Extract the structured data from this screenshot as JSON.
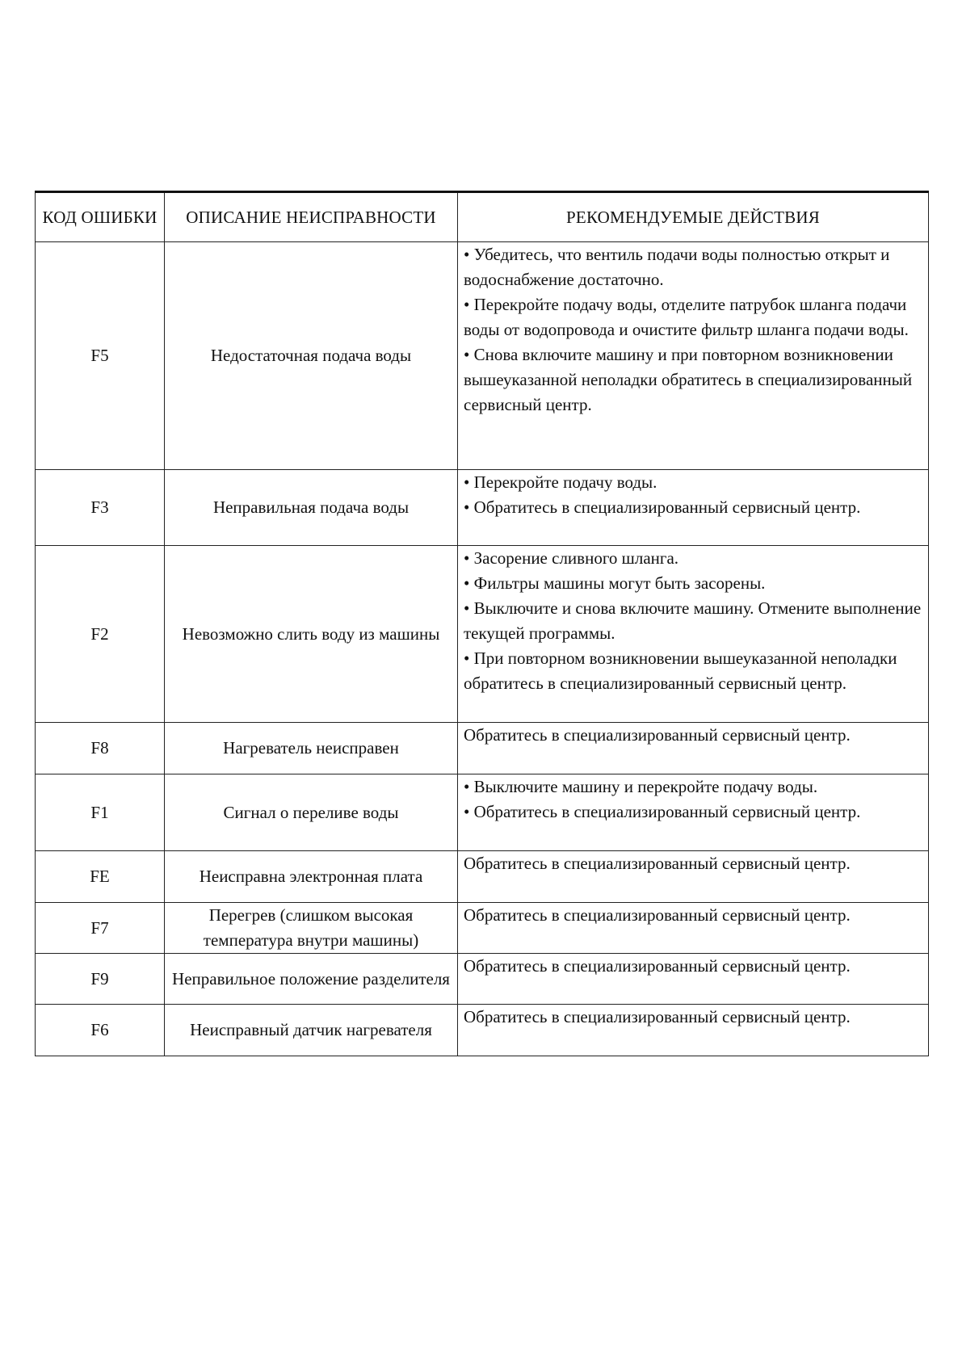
{
  "table": {
    "headers": [
      "КОД ОШИБКИ",
      "ОПИСАНИЕ НЕИСПРАВНОСТИ",
      "РЕКОМЕНДУЕМЫЕ ДЕЙСТВИЯ"
    ],
    "rows": [
      {
        "code": "F5",
        "description": "Недостаточная подача воды",
        "actions": [
          "• Убедитесь, что вентиль подачи воды полностью открыт и водоснабжение достаточно.",
          "• Перекройте подачу воды, отделите патрубок шланга подачи воды от водопровода и очистите фильтр шланга подачи воды.",
          "• Снова включите машину и при повторном возникновении вышеуказанной неполадки обратитесь в специализированный сервисный центр."
        ]
      },
      {
        "code": "F3",
        "description": "Неправильная подача воды",
        "actions": [
          "• Перекройте подачу воды.",
          "• Обратитесь в специализированный сервисный центр."
        ]
      },
      {
        "code": "F2",
        "description": "Невозможно слить воду из машины",
        "actions": [
          "• Засорение сливного шланга.",
          "• Фильтры машины могут быть засорены.",
          "• Выключите и снова включите машину. Отмените выполнение текущей программы.",
          "• При повторном возникновении вышеуказанной неполадки обратитесь в специализированный сервисный центр."
        ]
      },
      {
        "code": "F8",
        "description": "Нагреватель неисправен",
        "actions": [
          "Обратитесь в специализированный сервисный центр."
        ]
      },
      {
        "code": "F1",
        "description": "Сигнал о переливе воды",
        "actions": [
          "• Выключите машину и перекройте подачу воды.",
          "• Обратитесь в специализированный сервисный центр."
        ]
      },
      {
        "code": "FE",
        "description": "Неисправна электронная плата",
        "actions": [
          "Обратитесь в специализированный сервисный центр."
        ]
      },
      {
        "code": "F7",
        "description": "Перегрев (слишком высокая температура внутри машины)",
        "actions": [
          "Обратитесь в специализированный сервисный центр."
        ]
      },
      {
        "code": "F9",
        "description": "Неправильное положение разделителя",
        "actions": [
          "Обратитесь в специализированный сервисный центр."
        ]
      },
      {
        "code": "F6",
        "description": "Неисправный датчик нагревателя",
        "actions": [
          "Обратитесь в специализированный сервисный центр."
        ]
      }
    ]
  }
}
